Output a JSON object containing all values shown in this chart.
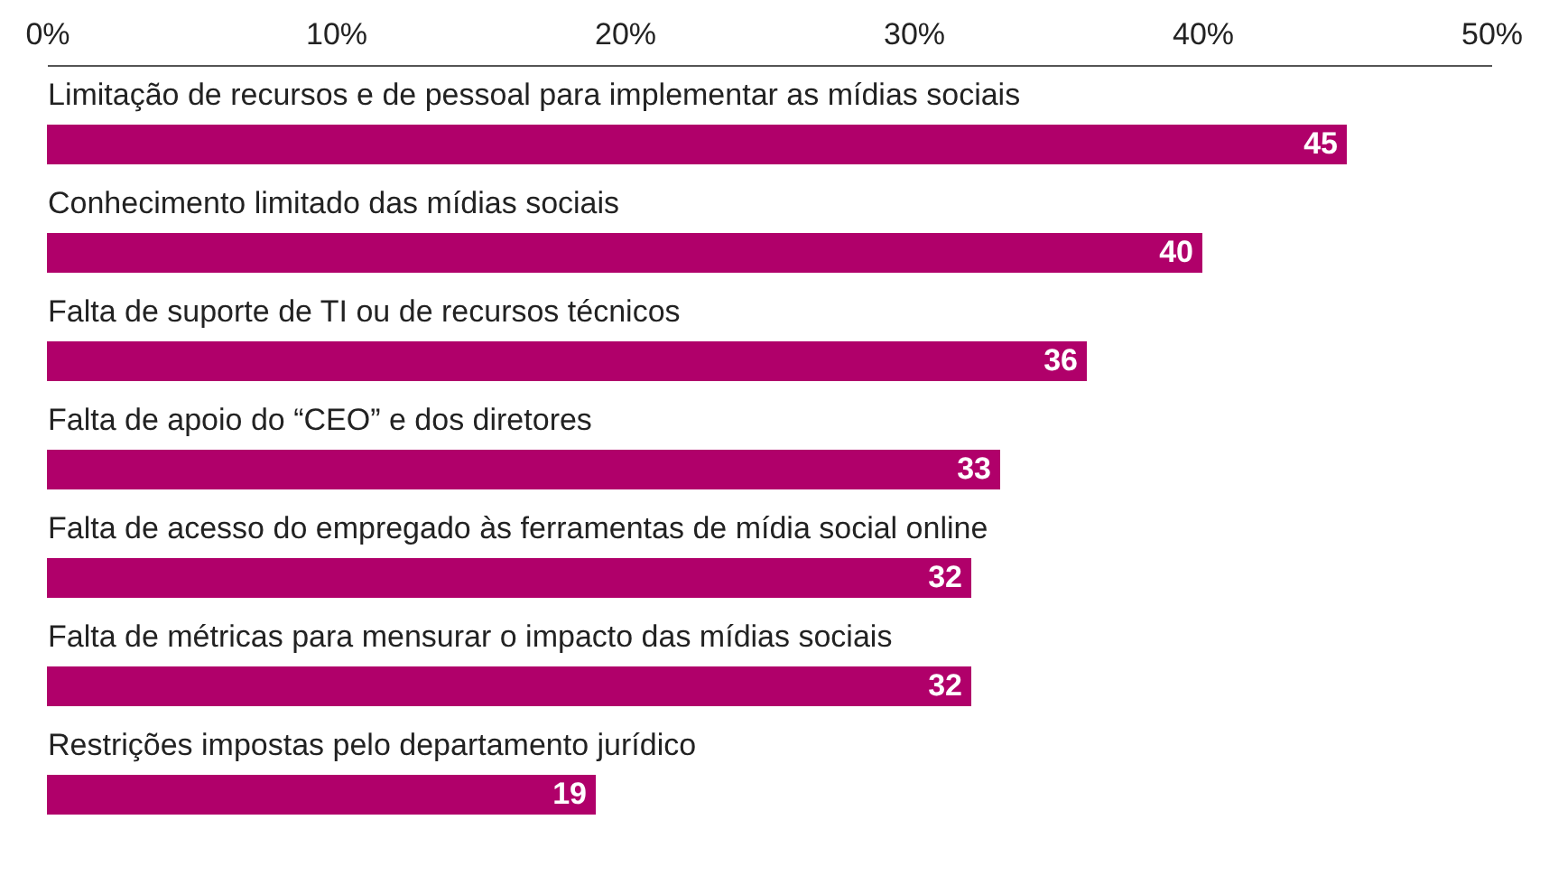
{
  "chart_data": {
    "type": "bar",
    "orientation": "horizontal",
    "categories": [
      "Limitação de recursos e de pessoal para implementar as mídias sociais",
      "Conhecimento limitado das mídias sociais",
      "Falta de suporte de TI ou de recursos técnicos",
      "Falta de apoio do “CEO” e dos diretores",
      "Falta de acesso do empregado às ferramentas de mídia social online",
      "Falta de métricas para mensurar o impacto das mídias sociais",
      "Restrições impostas pelo departamento jurídico"
    ],
    "values": [
      45,
      40,
      36,
      33,
      32,
      32,
      19
    ],
    "color": "#b0006a",
    "xlim": [
      0,
      50
    ],
    "xticks": [
      {
        "value": 0,
        "label": "0%"
      },
      {
        "value": 10,
        "label": "10%"
      },
      {
        "value": 20,
        "label": "20%"
      },
      {
        "value": 30,
        "label": "30%"
      },
      {
        "value": 40,
        "label": "40%"
      },
      {
        "value": 50,
        "label": "50%"
      }
    ],
    "data_labels": true,
    "grid": false
  }
}
